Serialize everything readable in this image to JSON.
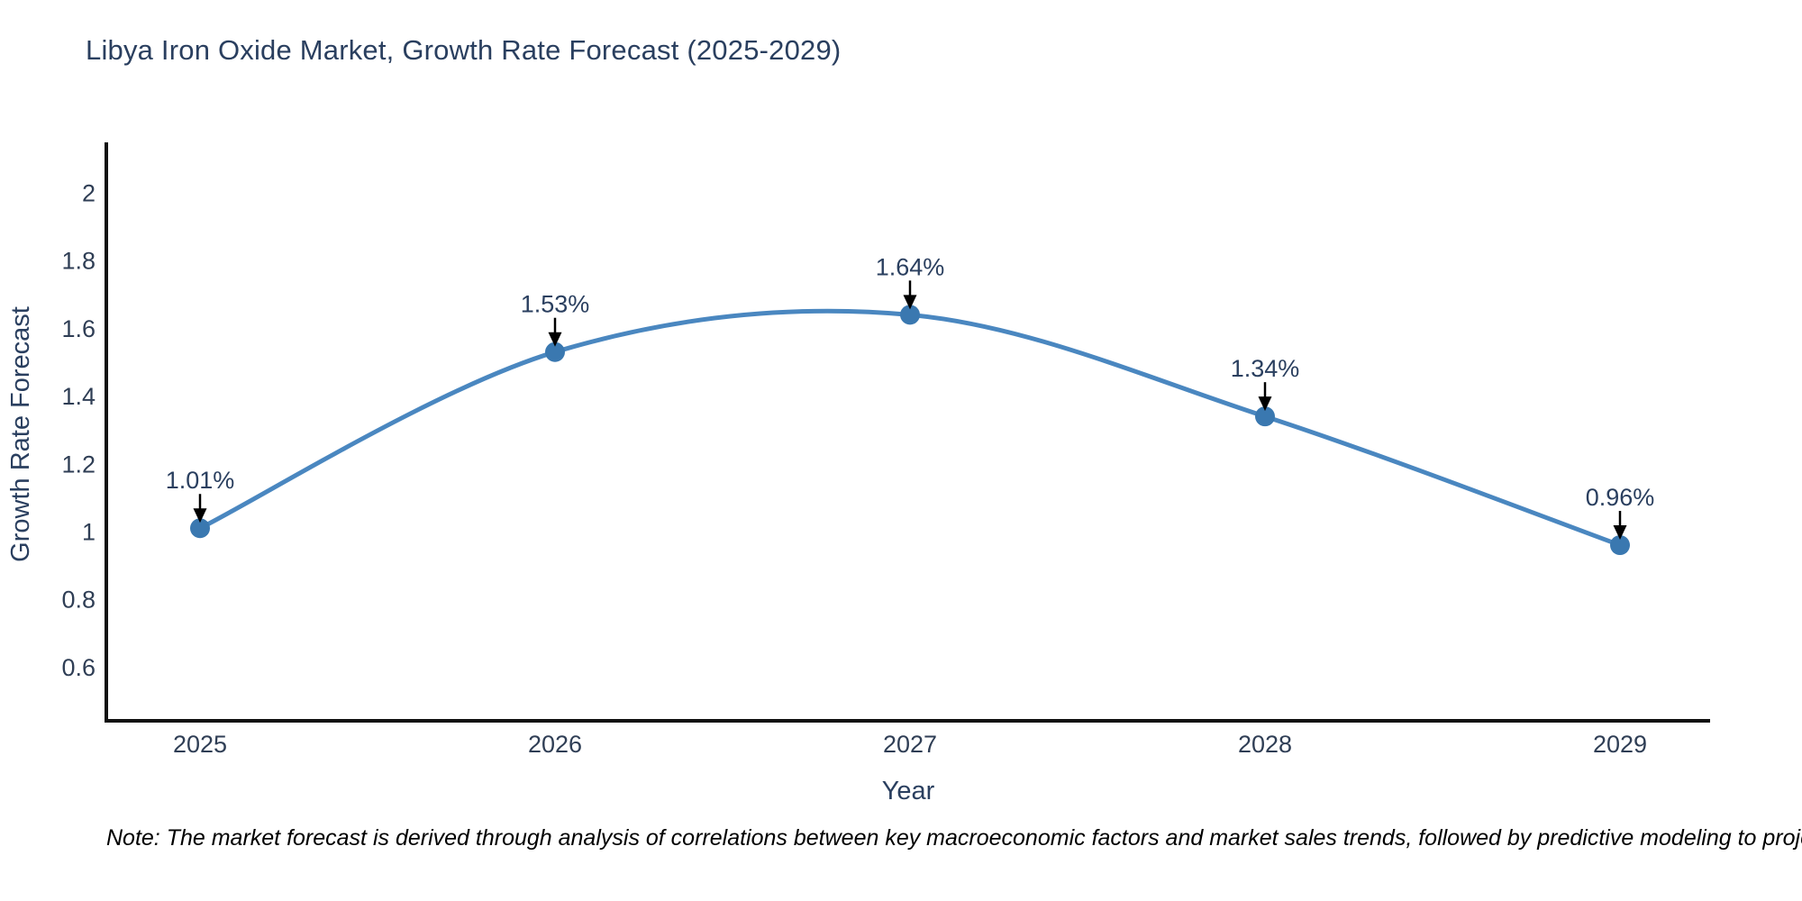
{
  "title": "Libya Iron Oxide Market, Growth Rate Forecast (2025-2029)",
  "note": "Note: The market forecast is derived through analysis of correlations between key macroeconomic factors and market sales trends, followed by predictive modeling to project future sales",
  "chart_data": {
    "type": "line",
    "title": "Libya Iron Oxide Market, Growth Rate Forecast (2025-2029)",
    "xlabel": "Year",
    "ylabel": "Growth Rate Forecast",
    "categories": [
      "2025",
      "2026",
      "2027",
      "2028",
      "2029"
    ],
    "series": [
      {
        "name": "Growth Rate Forecast",
        "values": [
          1.01,
          1.53,
          1.64,
          1.34,
          0.96
        ],
        "point_labels": [
          "1.01%",
          "1.53%",
          "1.64%",
          "1.34%",
          "0.96%"
        ]
      }
    ],
    "yticks": [
      2,
      1.8,
      1.6,
      1.4,
      1.2,
      1,
      0.8,
      0.6
    ],
    "ylim": [
      0.45,
      2.15
    ],
    "line_shape": "spline",
    "grid": false,
    "legend": "none",
    "colors": {
      "line": "#4a87c0",
      "marker": "#3a78b0",
      "arrow": "#000000",
      "text": "#2a3f5f",
      "axis_line": "#111111"
    }
  }
}
